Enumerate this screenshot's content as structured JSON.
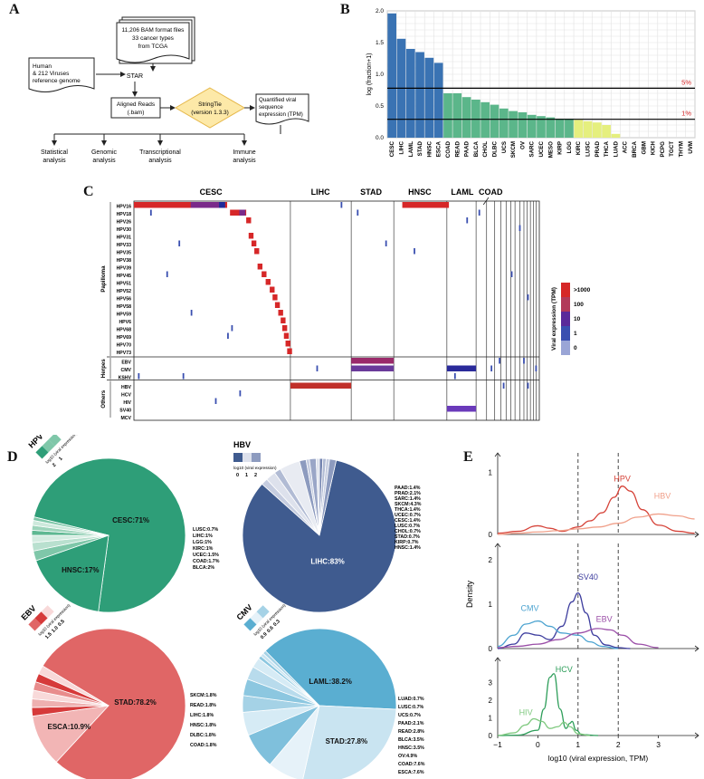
{
  "panels": {
    "a": "A",
    "b": "B",
    "c": "C",
    "d": "D",
    "e": "E"
  },
  "flow": {
    "bam": [
      "11,206 BAM format files",
      "33 cancer types",
      "from TCGA"
    ],
    "ref": [
      "Human",
      "& 212 Viruses",
      "reference genome"
    ],
    "star": "STAR",
    "aligned": [
      "Aligned Reads",
      "(.bam)"
    ],
    "stringtie": [
      "StringTie",
      "(version 1.3.3)"
    ],
    "quant": [
      "Quantified viral",
      "sequence",
      "expression (TPM)"
    ],
    "outputs": [
      [
        "Statistical",
        "analysis"
      ],
      [
        "Genomic",
        "analysis"
      ],
      [
        "Transcriptional",
        "analysis"
      ],
      [
        "Immune",
        "analysis"
      ]
    ]
  },
  "chart_data": [
    {
      "type": "bar",
      "ylabel": "log (fraction+1)",
      "ylim": [
        0,
        2.0
      ],
      "yticks": [
        0.0,
        0.5,
        1.0,
        1.5,
        2.0
      ],
      "categories": [
        "CESC",
        "LIHC",
        "LAML",
        "STAD",
        "HNSC",
        "ESCA",
        "COAD",
        "READ",
        "PAAD",
        "BLCA",
        "CHOL",
        "DLBC",
        "UCS",
        "SKCM",
        "OV",
        "SARC",
        "UCEC",
        "MESO",
        "KIRP",
        "LGG",
        "KIRC",
        "LUSC",
        "PRAD",
        "THCA",
        "LUAD",
        "ACC",
        "BRCA",
        "GBM",
        "KICH",
        "PCPG",
        "TGCT",
        "THYM",
        "UVM"
      ],
      "values": [
        1.96,
        1.56,
        1.4,
        1.35,
        1.26,
        1.18,
        0.7,
        0.7,
        0.64,
        0.6,
        0.56,
        0.52,
        0.46,
        0.42,
        0.4,
        0.36,
        0.34,
        0.32,
        0.3,
        0.3,
        0.28,
        0.26,
        0.24,
        0.2,
        0.06,
        0,
        0,
        0,
        0,
        0,
        0,
        0,
        0
      ],
      "colors": [
        "#3a73b3",
        "#3a73b3",
        "#3a73b3",
        "#3a73b3",
        "#3a73b3",
        "#3a73b3",
        "#5bb68a",
        "#5bb68a",
        "#5bb68a",
        "#5bb68a",
        "#5bb68a",
        "#5bb68a",
        "#5bb68a",
        "#5bb68a",
        "#5bb68a",
        "#5bb68a",
        "#5bb68a",
        "#5bb68a",
        "#5bb68a",
        "#5bb68a",
        "#e5ef7e",
        "#e5ef7e",
        "#e5ef7e",
        "#e5ef7e",
        "#e5ef7e",
        "#e5ef7e",
        "#e5ef7e",
        "#e5ef7e",
        "#e5ef7e",
        "#e5ef7e",
        "#e5ef7e",
        "#e5ef7e",
        "#e5ef7e"
      ],
      "thresholds": [
        {
          "label": "5%",
          "y": 0.78
        },
        {
          "label": "1%",
          "y": 0.29
        }
      ],
      "grid": true
    },
    {
      "type": "heatmap",
      "cancer_labels": [
        "CESC",
        "LIHC",
        "STAD",
        "HNSC",
        "LAML",
        "COAD"
      ],
      "groups": [
        {
          "name": "Papilloma",
          "viruses": [
            "HPV16",
            "HPV18",
            "HPV26",
            "HPV30",
            "HPV31",
            "HPV33",
            "HPV35",
            "HPV38",
            "HPV39",
            "HPV45",
            "HPV51",
            "HPV52",
            "HPV56",
            "HPV58",
            "HPV59",
            "HPV6",
            "HPV68",
            "HPV69",
            "HPV70",
            "HPV73"
          ]
        },
        {
          "name": "Herpes",
          "viruses": [
            "EBV",
            "CMV",
            "KSHV"
          ]
        },
        {
          "name": "Others",
          "viruses": [
            "HBV",
            "HCV",
            "HIV",
            "SV40",
            "MCV"
          ]
        }
      ],
      "legend_title": "Viral expression (TPM)",
      "legend": [
        {
          "label": ">1000",
          "color": "#d62728"
        },
        {
          "label": "100",
          "color": "#b23a5a"
        },
        {
          "label": "10",
          "color": "#5a2a9a"
        },
        {
          "label": "1",
          "color": "#3a4fb0"
        },
        {
          "label": "0",
          "color": "#9aa5d6"
        }
      ]
    },
    {
      "type": "pie",
      "title": "HPV",
      "legend_title": "log10 (viral expression)",
      "legend_ticks": [
        "2",
        "1"
      ],
      "color": "#2e9e78",
      "slices": [
        {
          "label": "CESC:71%",
          "value": 71,
          "color": "#2e9e78"
        },
        {
          "label": "HNSC:17%",
          "value": 17,
          "color": "#2e9e78"
        },
        {
          "label": "BLCA:2%",
          "value": 2,
          "color": "#7fc7a9"
        },
        {
          "label": "COAD:1.7%",
          "value": 1.7,
          "color": "#b9e0cf"
        },
        {
          "label": "UCEC:1.5%",
          "value": 1.5,
          "color": "#d4ece1"
        },
        {
          "label": "KIRC:1%",
          "value": 1,
          "color": "#5eb892"
        },
        {
          "label": "LGG:1%",
          "value": 1,
          "color": "#9dd4bb"
        },
        {
          "label": "LIHC:1%",
          "value": 1,
          "color": "#cde9dc"
        },
        {
          "label": "LUSC:0.7%",
          "value": 0.7,
          "color": "#7fc7a9"
        }
      ]
    },
    {
      "type": "pie",
      "title": "HBV",
      "legend_title": "log10 (viral expression)",
      "legend_ticks": [
        "0",
        "1",
        "2"
      ],
      "color": "#3f5b8f",
      "slices": [
        {
          "label": "LIHC:83%",
          "value": 83,
          "color": "#3f5b8f"
        },
        {
          "label": "PAAD:1.4%",
          "value": 1.4,
          "color": "#c6cde0"
        },
        {
          "label": "PRAD:2.1%",
          "value": 2.1,
          "color": "#dde1ec"
        },
        {
          "label": "SARC:1.4%",
          "value": 1.4,
          "color": "#b1bbd4"
        },
        {
          "label": "SKCM:4.3%",
          "value": 4.3,
          "color": "#e8ebf2"
        },
        {
          "label": "THCA:1.4%",
          "value": 1.4,
          "color": "#8d9bbf"
        },
        {
          "label": "UCEC:0.7%",
          "value": 0.7,
          "color": "#c6cde0"
        },
        {
          "label": "CESC:1.4%",
          "value": 1.4,
          "color": "#9aa6c7"
        },
        {
          "label": "LUSC:0.7%",
          "value": 0.7,
          "color": "#dde1ec"
        },
        {
          "label": "CHOL:0.7%",
          "value": 0.7,
          "color": "#7484b0"
        },
        {
          "label": "STAD:0.7%",
          "value": 0.7,
          "color": "#b1bbd4"
        },
        {
          "label": "KIRP:0.7%",
          "value": 0.7,
          "color": "#c6cde0"
        },
        {
          "label": "HNSC:1.4%",
          "value": 1.4,
          "color": "#8d9bbf"
        }
      ]
    },
    {
      "type": "pie",
      "title": "EBV",
      "legend_title": "log10 (viral expression)",
      "legend_ticks": [
        "1.5",
        "1.0",
        "0.5"
      ],
      "color": "#e06666",
      "slices": [
        {
          "label": "STAD:78.2%",
          "value": 78.2,
          "color": "#e06666"
        },
        {
          "label": "ESCA:10.9%",
          "value": 10.9,
          "color": "#f2b5b5"
        },
        {
          "label": "COAD:1.8%",
          "value": 1.8,
          "color": "#d63a3a"
        },
        {
          "label": "DLBC:1.8%",
          "value": 1.8,
          "color": "#eeb0b0"
        },
        {
          "label": "HNSC:1.8%",
          "value": 1.8,
          "color": "#f8d9d9"
        },
        {
          "label": "LIHC:1.8%",
          "value": 1.8,
          "color": "#e88c8c"
        },
        {
          "label": "READ:1.8%",
          "value": 1.8,
          "color": "#d63a3a"
        },
        {
          "label": "SKCM:1.8%",
          "value": 1.8,
          "color": "#f8d9d9"
        }
      ]
    },
    {
      "type": "pie",
      "title": "CMV",
      "legend_title": "log10 (viral expression)",
      "legend_ticks": [
        "0.9",
        "0.6",
        "0.3"
      ],
      "color": "#5aaed1",
      "slices": [
        {
          "label": "LAML:38.2%",
          "value": 38.2,
          "color": "#5aaed1"
        },
        {
          "label": "STAD:27.8%",
          "value": 27.8,
          "color": "#c9e4f1"
        },
        {
          "label": "ESCA:7.6%",
          "value": 7.6,
          "color": "#e6f2f9"
        },
        {
          "label": "COAD:7.6%",
          "value": 7.6,
          "color": "#7fc0dc"
        },
        {
          "label": "OV:4.9%",
          "value": 4.9,
          "color": "#d6ebf5"
        },
        {
          "label": "HNSC:3.5%",
          "value": 3.5,
          "color": "#a5d2e6"
        },
        {
          "label": "BLCA:3.5%",
          "value": 3.5,
          "color": "#8cc7e0"
        },
        {
          "label": "READ:2.8%",
          "value": 2.8,
          "color": "#b8dbec"
        },
        {
          "label": "PAAD:2.1%",
          "value": 2.1,
          "color": "#d6ebf5"
        },
        {
          "label": "UCS:0.7%",
          "value": 0.7,
          "color": "#8cc7e0"
        },
        {
          "label": "LUSC:0.7%",
          "value": 0.7,
          "color": "#c9e4f1"
        },
        {
          "label": "LUAD:0.7%",
          "value": 0.7,
          "color": "#a5d2e6"
        }
      ]
    },
    {
      "type": "line",
      "ylabel": "Density",
      "xlabel": "log10 (viral expression, TPM)",
      "xlim": [
        -1,
        4
      ],
      "xticks": [
        -1,
        0,
        1,
        2,
        3
      ],
      "vlines": [
        1,
        2
      ],
      "facets": [
        {
          "ylim": [
            0,
            1.2
          ],
          "yticks": [
            0,
            1
          ],
          "series": [
            {
              "name": "HPV",
              "color": "#d6443a",
              "x": [
                -1,
                -0.5,
                0,
                0.3,
                0.6,
                1,
                1.3,
                1.6,
                1.9,
                2.1,
                2.3,
                2.6,
                3,
                3.5,
                3.9
              ],
              "y": [
                0.02,
                0.05,
                0.14,
                0.1,
                0.05,
                0.12,
                0.22,
                0.35,
                0.6,
                0.78,
                0.7,
                0.4,
                0.15,
                0.05,
                0.02
              ]
            },
            {
              "name": "HBV",
              "color": "#f0a08a",
              "x": [
                -1,
                -0.5,
                0,
                0.5,
                1,
                1.5,
                2,
                2.5,
                3,
                3.5,
                3.9
              ],
              "y": [
                0.0,
                0.02,
                0.04,
                0.06,
                0.09,
                0.12,
                0.18,
                0.28,
                0.33,
                0.3,
                0.25
              ]
            }
          ]
        },
        {
          "ylim": [
            0,
            2.2
          ],
          "yticks": [
            0,
            1,
            2
          ],
          "series": [
            {
              "name": "SV40",
              "color": "#3d3d9e",
              "x": [
                -1,
                -0.6,
                -0.3,
                0,
                0.3,
                0.6,
                0.85,
                1,
                1.2,
                1.4,
                1.7,
                2,
                2.3
              ],
              "y": [
                0.0,
                0.1,
                0.35,
                0.3,
                0.2,
                0.5,
                1.05,
                1.25,
                0.8,
                0.3,
                0.08,
                0.02,
                0.0
              ]
            },
            {
              "name": "CMV",
              "color": "#4ca3d0",
              "x": [
                -1,
                -0.6,
                -0.3,
                0,
                0.3,
                0.6,
                1,
                1.3,
                1.6,
                2
              ],
              "y": [
                0.05,
                0.3,
                0.55,
                0.62,
                0.5,
                0.35,
                0.3,
                0.15,
                0.05,
                0.0
              ]
            },
            {
              "name": "EBV",
              "color": "#9b4fa8",
              "x": [
                -1,
                -0.5,
                0,
                0.5,
                1,
                1.5,
                1.8,
                2.1,
                2.5,
                3
              ],
              "y": [
                0.02,
                0.05,
                0.1,
                0.2,
                0.35,
                0.45,
                0.42,
                0.3,
                0.1,
                0.02
              ]
            }
          ]
        },
        {
          "ylim": [
            0,
            4
          ],
          "yticks": [
            0,
            1,
            2,
            3
          ],
          "series": [
            {
              "name": "HCV",
              "color": "#2e9e5a",
              "x": [
                -1,
                -0.5,
                0,
                0.15,
                0.3,
                0.4,
                0.55,
                0.7,
                0.8,
                0.85,
                0.95,
                1.1,
                1.5
              ],
              "y": [
                0.0,
                0.02,
                0.3,
                1.5,
                3.3,
                3.5,
                1.5,
                0.4,
                0.7,
                0.8,
                0.3,
                0.05,
                0.0
              ]
            },
            {
              "name": "HIV",
              "color": "#7fc97f",
              "x": [
                -1,
                -0.6,
                -0.3,
                -0.1,
                0.1,
                0.3,
                0.5,
                0.65,
                0.8,
                1,
                1.3
              ],
              "y": [
                0.0,
                0.15,
                0.6,
                0.95,
                0.8,
                0.4,
                0.5,
                0.75,
                0.5,
                0.1,
                0.0
              ]
            }
          ]
        }
      ]
    }
  ]
}
